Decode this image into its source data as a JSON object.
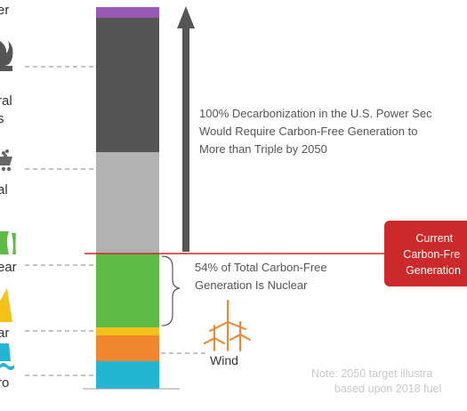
{
  "chart_data": {
    "type": "bar",
    "stacked": true,
    "orientation": "vertical",
    "segments": [
      {
        "name": "Hydro",
        "color": "#22b5d4"
      },
      {
        "name": "Wind",
        "color": "#f0862d"
      },
      {
        "name": "Solar",
        "color": "#f4c21a"
      },
      {
        "name": "Nuclear",
        "color": "#5dbb46"
      },
      {
        "name": "Coal",
        "color": "#b2b2b2"
      },
      {
        "name": "Natural Gas",
        "color": "#555555"
      },
      {
        "name": "Other",
        "color": "#9b59b6"
      }
    ],
    "side_labels": [
      {
        "segment": "Other",
        "lines": [
          "er"
        ]
      },
      {
        "segment": "Natural Gas",
        "lines": [
          "ral",
          "s"
        ]
      },
      {
        "segment": "Coal",
        "lines": [
          "al"
        ]
      },
      {
        "segment": "Nuclear",
        "lines": [
          "ear"
        ]
      },
      {
        "segment": "Solar",
        "lines": [
          "ar"
        ]
      },
      {
        "segment": "Hydro",
        "lines": [
          "ro"
        ]
      }
    ],
    "annotations": {
      "arrow_text": [
        "100% Decarbonization in the U.S. Power Sec",
        "Would Require Carbon-Free Generation to",
        "More than Triple by 2050"
      ],
      "nuclear_text": [
        "54% of Total Carbon-Free",
        "Generation Is Nuclear"
      ],
      "wind_label": "Wind",
      "current_box": [
        "Current",
        "Carbon-Fre",
        "Generation"
      ],
      "note": [
        "Note: 2050 target illustra",
        "based upon 2018 fuel"
      ]
    },
    "colors": {
      "arrow": "#555555",
      "divider_line": "#cc2a2a",
      "current_box": "#cc2a2a",
      "icons": "#555555",
      "wind_icon": "#f0862d",
      "solar_icon": "#f4c21a",
      "hydro_icon": "#22b5d4",
      "nuclear_icon": "#5dbb46"
    }
  }
}
